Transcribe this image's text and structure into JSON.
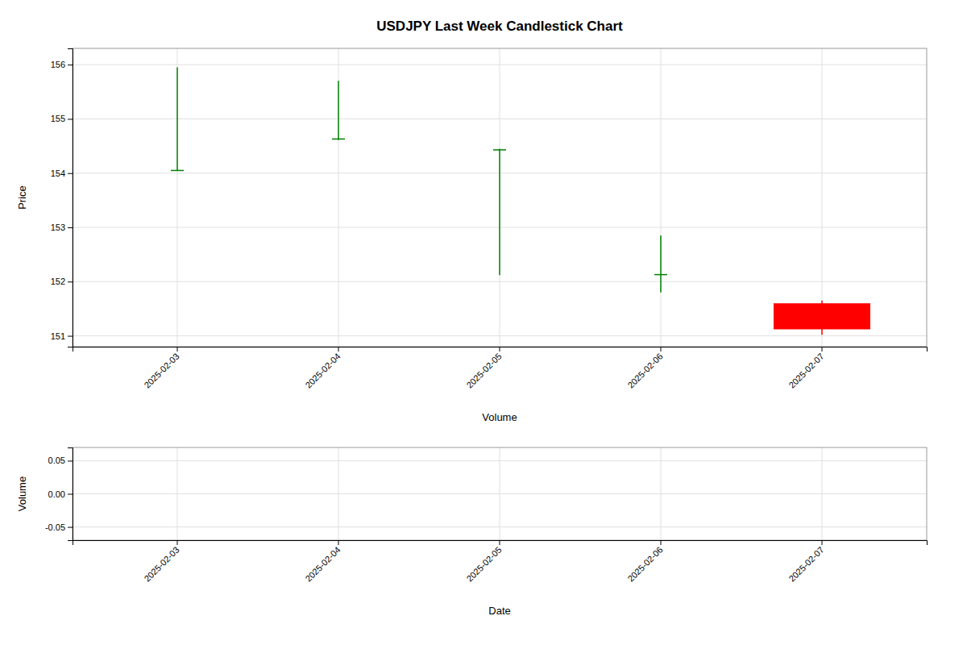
{
  "chart_data": [
    {
      "type": "candlestick",
      "title": "USDJPY Last Week Candlestick Chart",
      "categories": [
        "2025-02-03",
        "2025-02-04",
        "2025-02-05",
        "2025-02-06",
        "2025-02-07"
      ],
      "open": [
        154.05,
        154.62,
        154.43,
        152.12,
        151.6
      ],
      "high": [
        155.95,
        155.7,
        154.45,
        152.85,
        151.65
      ],
      "low": [
        154.04,
        154.61,
        152.12,
        151.8,
        151.02
      ],
      "close": [
        154.06,
        154.64,
        154.44,
        152.14,
        151.12
      ],
      "colors": [
        "#008000",
        "#008000",
        "#008000",
        "#008000",
        "#FF0000"
      ],
      "y_label": "Price",
      "x_label": "Volume",
      "ylim": [
        150.8,
        156.3
      ],
      "yticks": [
        151,
        152,
        153,
        154,
        155,
        156
      ],
      "grid": true
    },
    {
      "type": "bar",
      "categories": [
        "2025-02-03",
        "2025-02-04",
        "2025-02-05",
        "2025-02-06",
        "2025-02-07"
      ],
      "values": [
        0,
        0,
        0,
        0,
        0
      ],
      "colors": [
        "#008000",
        "#008000",
        "#008000",
        "#008000",
        "#FF0000"
      ],
      "y_label": "Volume",
      "x_label": "Date",
      "ylim": [
        -0.07,
        0.07
      ],
      "yticks": [
        -0.05,
        {
          "value": 0,
          "label": "0.00"
        },
        0.05
      ],
      "grid": true
    }
  ]
}
